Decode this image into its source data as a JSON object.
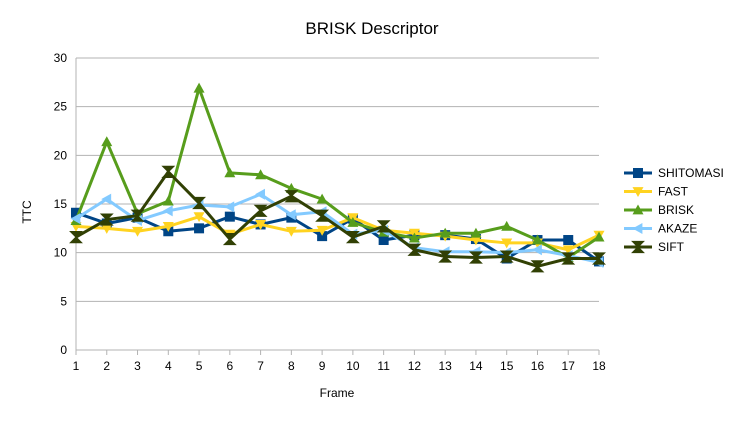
{
  "chart_data": {
    "type": "line",
    "title": "BRISK Descriptor",
    "xlabel": "Frame",
    "ylabel": "TTC",
    "ylim": [
      0,
      30
    ],
    "yticks": [
      0,
      5,
      10,
      15,
      20,
      25,
      30
    ],
    "grid": "horizontal",
    "legend_position": "right",
    "categories": [
      "1",
      "2",
      "3",
      "4",
      "5",
      "6",
      "7",
      "8",
      "9",
      "10",
      "11",
      "12",
      "13",
      "14",
      "15",
      "16",
      "17",
      "18"
    ],
    "series": [
      {
        "name": "SHITOMASI",
        "color": "#004586",
        "marker": "square",
        "values": [
          14.1,
          13.0,
          13.6,
          12.2,
          12.5,
          13.7,
          12.9,
          13.6,
          11.7,
          13.5,
          11.3,
          11.8,
          11.8,
          11.4,
          9.4,
          11.3,
          11.3,
          9.1
        ]
      },
      {
        "name": "FAST",
        "color": "#FFD320",
        "marker": "triangle-down",
        "values": [
          12.7,
          12.5,
          12.2,
          12.7,
          13.7,
          11.9,
          12.9,
          12.2,
          12.3,
          13.6,
          12.3,
          12.0,
          11.7,
          11.3,
          11.0,
          11.0,
          10.3,
          11.8
        ]
      },
      {
        "name": "BRISK",
        "color": "#579D1C",
        "marker": "triangle-up",
        "values": [
          13.3,
          21.4,
          14.0,
          15.3,
          26.9,
          18.2,
          18.0,
          16.6,
          15.5,
          13.1,
          12.1,
          11.5,
          12.0,
          12.0,
          12.7,
          11.3,
          9.5,
          11.6
        ]
      },
      {
        "name": "AKAZE",
        "color": "#83CAFF",
        "marker": "triangle-left",
        "values": [
          13.5,
          15.5,
          13.3,
          14.3,
          14.9,
          14.7,
          16.0,
          13.9,
          14.2,
          11.9,
          12.3,
          10.5,
          10.1,
          10.1,
          10.0,
          10.3,
          9.7,
          9.0
        ]
      },
      {
        "name": "SIFT",
        "color": "#314004",
        "marker": "x",
        "values": [
          11.6,
          13.4,
          13.8,
          18.3,
          15.1,
          11.4,
          14.3,
          15.8,
          13.8,
          11.6,
          12.7,
          10.3,
          9.6,
          9.5,
          9.6,
          8.6,
          9.4,
          9.4
        ]
      }
    ]
  }
}
